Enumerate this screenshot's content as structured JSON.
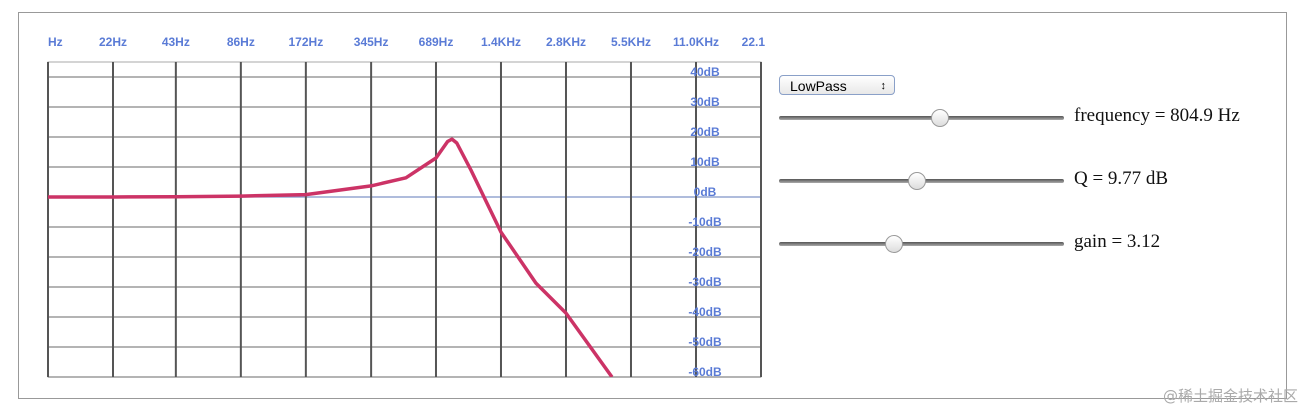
{
  "chart_data": {
    "type": "line",
    "xscale": "log",
    "x": [
      11,
      22,
      43,
      86,
      172,
      345,
      500,
      689,
      780,
      817,
      860,
      1000,
      1378,
      2000,
      2756,
      4500
    ],
    "series": [
      {
        "color": "#cc3366",
        "values": [
          0,
          0,
          0.1,
          0.3,
          0.8,
          3.7,
          6.4,
          13,
          18.5,
          19.3,
          18,
          9,
          -11.7,
          -28.7,
          -38.7,
          -60
        ]
      }
    ],
    "xlim": [
      11,
      22050
    ],
    "xticks": [
      {
        "value": 11,
        "label": "Hz"
      },
      {
        "value": 22,
        "label": "22Hz"
      },
      {
        "value": 43,
        "label": "43Hz"
      },
      {
        "value": 86,
        "label": "86Hz"
      },
      {
        "value": 172,
        "label": "172Hz"
      },
      {
        "value": 345,
        "label": "345Hz"
      },
      {
        "value": 689,
        "label": "689Hz"
      },
      {
        "value": 1378,
        "label": "1.4KHz"
      },
      {
        "value": 2756,
        "label": "2.8KHz"
      },
      {
        "value": 5512,
        "label": "5.5KHz"
      },
      {
        "value": 11025,
        "label": "11.0KHz"
      },
      {
        "value": 22050,
        "label": "22.1"
      }
    ],
    "ylim": [
      -60,
      45
    ],
    "yticks": [
      {
        "value": 40,
        "label": "40dB"
      },
      {
        "value": 30,
        "label": "30dB"
      },
      {
        "value": 20,
        "label": "20dB"
      },
      {
        "value": 10,
        "label": "10dB"
      },
      {
        "value": 0,
        "label": "0dB"
      },
      {
        "value": -10,
        "label": "-10dB"
      },
      {
        "value": -20,
        "label": "-20dB"
      },
      {
        "value": -30,
        "label": "-30dB"
      },
      {
        "value": -40,
        "label": "-40dB"
      },
      {
        "value": -50,
        "label": "-50dB"
      },
      {
        "value": -60,
        "label": "-60dB"
      }
    ],
    "grid": true
  },
  "controls": {
    "filter_type": "LowPass",
    "sliders": [
      {
        "label": "frequency = 804.9 Hz"
      },
      {
        "label": "Q = 9.77 dB"
      },
      {
        "label": "gain = 3.12"
      }
    ]
  },
  "watermark": "@稀土掘金技术社区"
}
